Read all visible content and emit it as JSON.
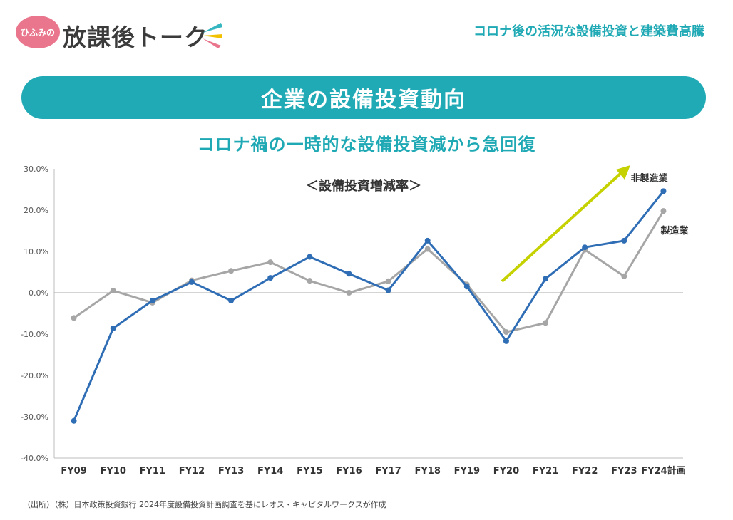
{
  "header": {
    "logo_badge": "ひふみの",
    "logo_text": "放課後トーク",
    "top_right": "コロナ後の活況な設備投資と建築費高騰"
  },
  "banner": {
    "title": "企業の設備投資動向"
  },
  "subtitle": "コロナ禍の一時的な設備投資減から急回復",
  "source": "（出所）（株）日本政策投資銀行 2024年度設備投資計画調査を基にレオス・キャピタルワークスが作成",
  "colors": {
    "accent": "#1faab5",
    "non_manufacturing": "#2f6db5",
    "manufacturing": "#a6a6a6",
    "arrow": "#c6d100",
    "badge": "#e9768c"
  },
  "chart_data": {
    "type": "line",
    "title": "＜設備投資増減率＞",
    "categories": [
      "FY09",
      "FY10",
      "FY11",
      "FY12",
      "FY13",
      "FY14",
      "FY15",
      "FY16",
      "FY17",
      "FY18",
      "FY19",
      "FY20",
      "FY21",
      "FY22",
      "FY23",
      "FY24計画"
    ],
    "series": [
      {
        "name": "非製造業",
        "values": [
          -31.0,
          -8.6,
          -1.9,
          2.6,
          -1.9,
          3.6,
          8.7,
          4.6,
          0.6,
          12.6,
          1.5,
          -11.7,
          3.4,
          11.0,
          12.6,
          24.6
        ]
      },
      {
        "name": "製造業",
        "values": [
          -6.1,
          0.5,
          -2.4,
          3.0,
          5.3,
          7.4,
          2.9,
          0.0,
          2.8,
          10.6,
          2.0,
          -9.5,
          -7.3,
          10.4,
          4.0,
          19.8
        ]
      }
    ],
    "yticks": [
      "30.0%",
      "20.0%",
      "10.0%",
      "0.0%",
      "-10.0%",
      "-20.0%",
      "-30.0%",
      "-40.0%"
    ],
    "ylim": [
      -40,
      30
    ],
    "grid": false,
    "zero_line": true
  }
}
